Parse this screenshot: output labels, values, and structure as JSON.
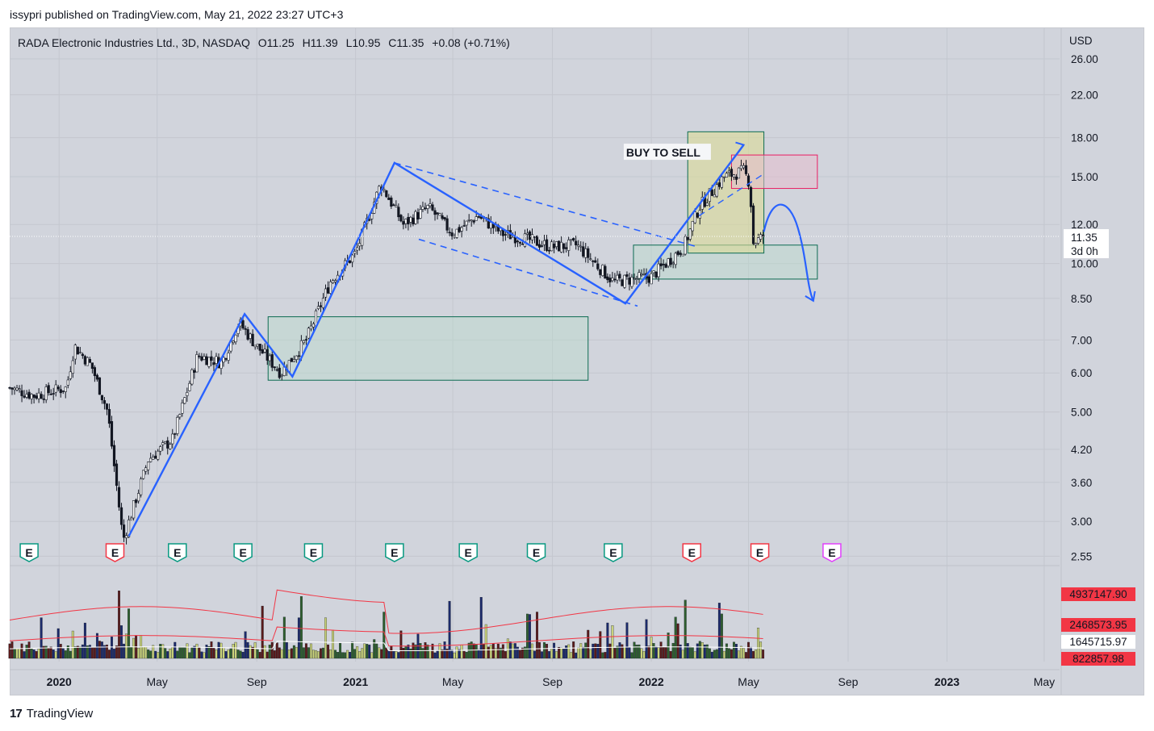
{
  "header": {
    "published": "issypri published on TradingView.com, May 21, 2022 23:27 UTC+3"
  },
  "symbol": {
    "name": "RADA Electronic Industries Ltd., 3D, NASDAQ",
    "open": "O11.25",
    "high": "H11.39",
    "low": "L10.95",
    "close": "C11.35",
    "change": "+0.08 (+0.71%)"
  },
  "price_axis": {
    "currency": "USD",
    "ticks": [
      "26.00",
      "22.00",
      "18.00",
      "15.00",
      "12.00",
      "10.00",
      "8.50",
      "7.00",
      "6.00",
      "5.00",
      "4.20",
      "3.60",
      "3.00",
      "2.55"
    ],
    "last_price": "11.35",
    "countdown": "3d 0h"
  },
  "volume_axis": {
    "labels": [
      "4937147.90",
      "2468573.95",
      "1645715.97",
      "822857.98"
    ]
  },
  "time_axis": {
    "labels": [
      "2020",
      "May",
      "Sep",
      "2021",
      "May",
      "Sep",
      "2022",
      "May",
      "Sep",
      "2023",
      "May"
    ],
    "bold": [
      true,
      false,
      false,
      true,
      false,
      false,
      true,
      false,
      false,
      true,
      false
    ]
  },
  "annotations": {
    "buy_to_sell": "BUY TO SELL"
  },
  "earnings": {
    "markers": [
      "E",
      "E",
      "E",
      "E",
      "E",
      "E",
      "E",
      "E",
      "E",
      "E",
      "E",
      "E"
    ],
    "kinds": [
      "green",
      "red",
      "green",
      "green",
      "green",
      "green",
      "green",
      "green",
      "green",
      "red",
      "red",
      "purple"
    ]
  },
  "colors": {
    "background": "#d1d4dc",
    "trend_line": "#2962ff",
    "green_box": "#0d6b52",
    "pink_box": "#e91e63",
    "yellow_box": "#cfd088",
    "volume_label": "#f23645",
    "volume_ma": "#f23645"
  },
  "chart_data": {
    "type": "candlestick",
    "title": "RADA Electronic Industries Ltd., 3D, NASDAQ",
    "ylabel": "USD",
    "y_scale": "log",
    "ylim": [
      2.45,
      30
    ],
    "x_range": [
      "2019-11-01",
      "2023-05-20"
    ],
    "price_path": [
      {
        "date": "2019-11-01",
        "price": 5.6
      },
      {
        "date": "2019-12-01",
        "price": 5.4
      },
      {
        "date": "2020-01-10",
        "price": 5.6
      },
      {
        "date": "2020-01-20",
        "price": 6.8
      },
      {
        "date": "2020-02-10",
        "price": 6.2
      },
      {
        "date": "2020-03-01",
        "price": 5.0
      },
      {
        "date": "2020-03-20",
        "price": 2.75
      },
      {
        "date": "2020-04-20",
        "price": 4.0
      },
      {
        "date": "2020-05-20",
        "price": 4.4
      },
      {
        "date": "2020-06-20",
        "price": 6.5
      },
      {
        "date": "2020-07-20",
        "price": 6.3
      },
      {
        "date": "2020-08-10",
        "price": 7.6
      },
      {
        "date": "2020-09-01",
        "price": 6.8
      },
      {
        "date": "2020-10-01",
        "price": 6.0
      },
      {
        "date": "2020-11-01",
        "price": 7.0
      },
      {
        "date": "2020-12-01",
        "price": 9.2
      },
      {
        "date": "2021-01-01",
        "price": 10.5
      },
      {
        "date": "2021-02-01",
        "price": 14.5
      },
      {
        "date": "2021-03-01",
        "price": 12.0
      },
      {
        "date": "2021-04-01",
        "price": 13.0
      },
      {
        "date": "2021-05-01",
        "price": 11.5
      },
      {
        "date": "2021-06-01",
        "price": 12.5
      },
      {
        "date": "2021-07-01",
        "price": 11.5
      },
      {
        "date": "2021-08-01",
        "price": 11.2
      },
      {
        "date": "2021-09-01",
        "price": 10.8
      },
      {
        "date": "2021-10-01",
        "price": 10.9
      },
      {
        "date": "2021-11-15",
        "price": 9.2
      },
      {
        "date": "2021-12-10",
        "price": 9.3
      },
      {
        "date": "2022-01-01",
        "price": 9.4
      },
      {
        "date": "2022-02-10",
        "price": 10.8
      },
      {
        "date": "2022-03-01",
        "price": 13.0
      },
      {
        "date": "2022-04-01",
        "price": 15.0
      },
      {
        "date": "2022-04-25",
        "price": 15.4
      },
      {
        "date": "2022-05-03",
        "price": 14.5
      },
      {
        "date": "2022-05-06",
        "price": 11.0
      },
      {
        "date": "2022-05-20",
        "price": 11.35
      }
    ],
    "last_close": 11.35,
    "zones": [
      {
        "name": "support-zone-2020",
        "from": "2020-09-15",
        "to": "2021-10-15",
        "low": 5.8,
        "high": 7.8,
        "color": "green"
      },
      {
        "name": "demand-zone-2022",
        "from": "2021-12-10",
        "to": "2022-07-25",
        "low": 9.3,
        "high": 10.9,
        "color": "green"
      },
      {
        "name": "buy-to-sell-zone",
        "from": "2022-02-15",
        "to": "2022-05-20",
        "low": 10.5,
        "high": 18.5,
        "color": "yellow"
      },
      {
        "name": "sell-zone",
        "from": "2022-04-10",
        "to": "2022-07-25",
        "low": 14.2,
        "high": 16.6,
        "color": "pink"
      }
    ],
    "volume": {
      "labels": [
        4937147.9,
        2468573.95,
        1645715.97,
        822857.98
      ]
    }
  }
}
